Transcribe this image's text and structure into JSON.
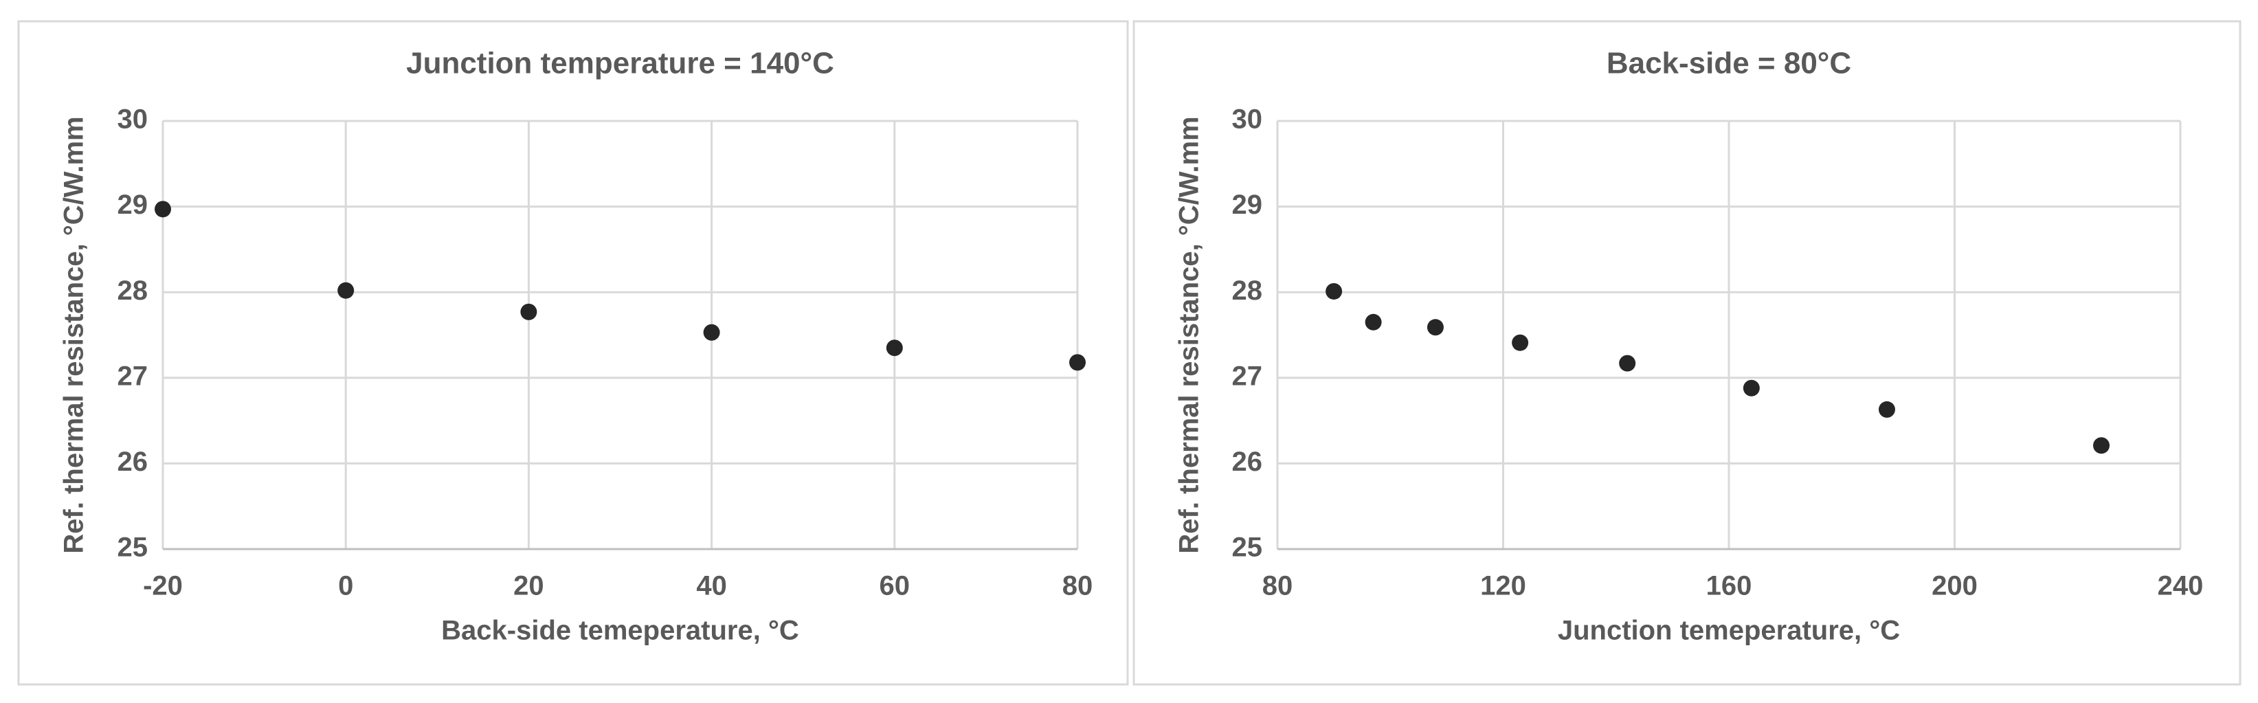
{
  "chart_data": [
    {
      "type": "scatter",
      "title": "Junction temperature = 140°C",
      "x_label": "Back-side temeperature, °C",
      "y_label": "Ref. thermal resistance, °C/W.mm",
      "x": [
        -20,
        0,
        20,
        40,
        60,
        80
      ],
      "values": [
        28.97,
        28.02,
        27.77,
        27.53,
        27.35,
        27.18
      ],
      "color": "#262626",
      "xlim": [
        -20,
        80
      ],
      "xticks": [
        -20,
        0,
        20,
        40,
        60,
        80
      ],
      "ylim": [
        25,
        30
      ],
      "yticks": [
        25,
        26,
        27,
        28,
        29,
        30
      ],
      "grid": true
    },
    {
      "type": "scatter",
      "title": "Back-side = 80°C",
      "x_label": "Junction temeperature, °C",
      "y_label": "Ref. thermal resistance, °C/W.mm",
      "x": [
        90,
        97,
        108,
        123,
        142,
        164,
        188,
        226
      ],
      "values": [
        28.01,
        27.65,
        27.59,
        27.41,
        27.17,
        26.88,
        26.63,
        26.21
      ],
      "color": "#262626",
      "xlim": [
        80,
        240
      ],
      "xticks": [
        80,
        120,
        160,
        200,
        240
      ],
      "ylim": [
        25,
        30
      ],
      "yticks": [
        25,
        26,
        27,
        28,
        29,
        30
      ],
      "grid": true
    }
  ]
}
